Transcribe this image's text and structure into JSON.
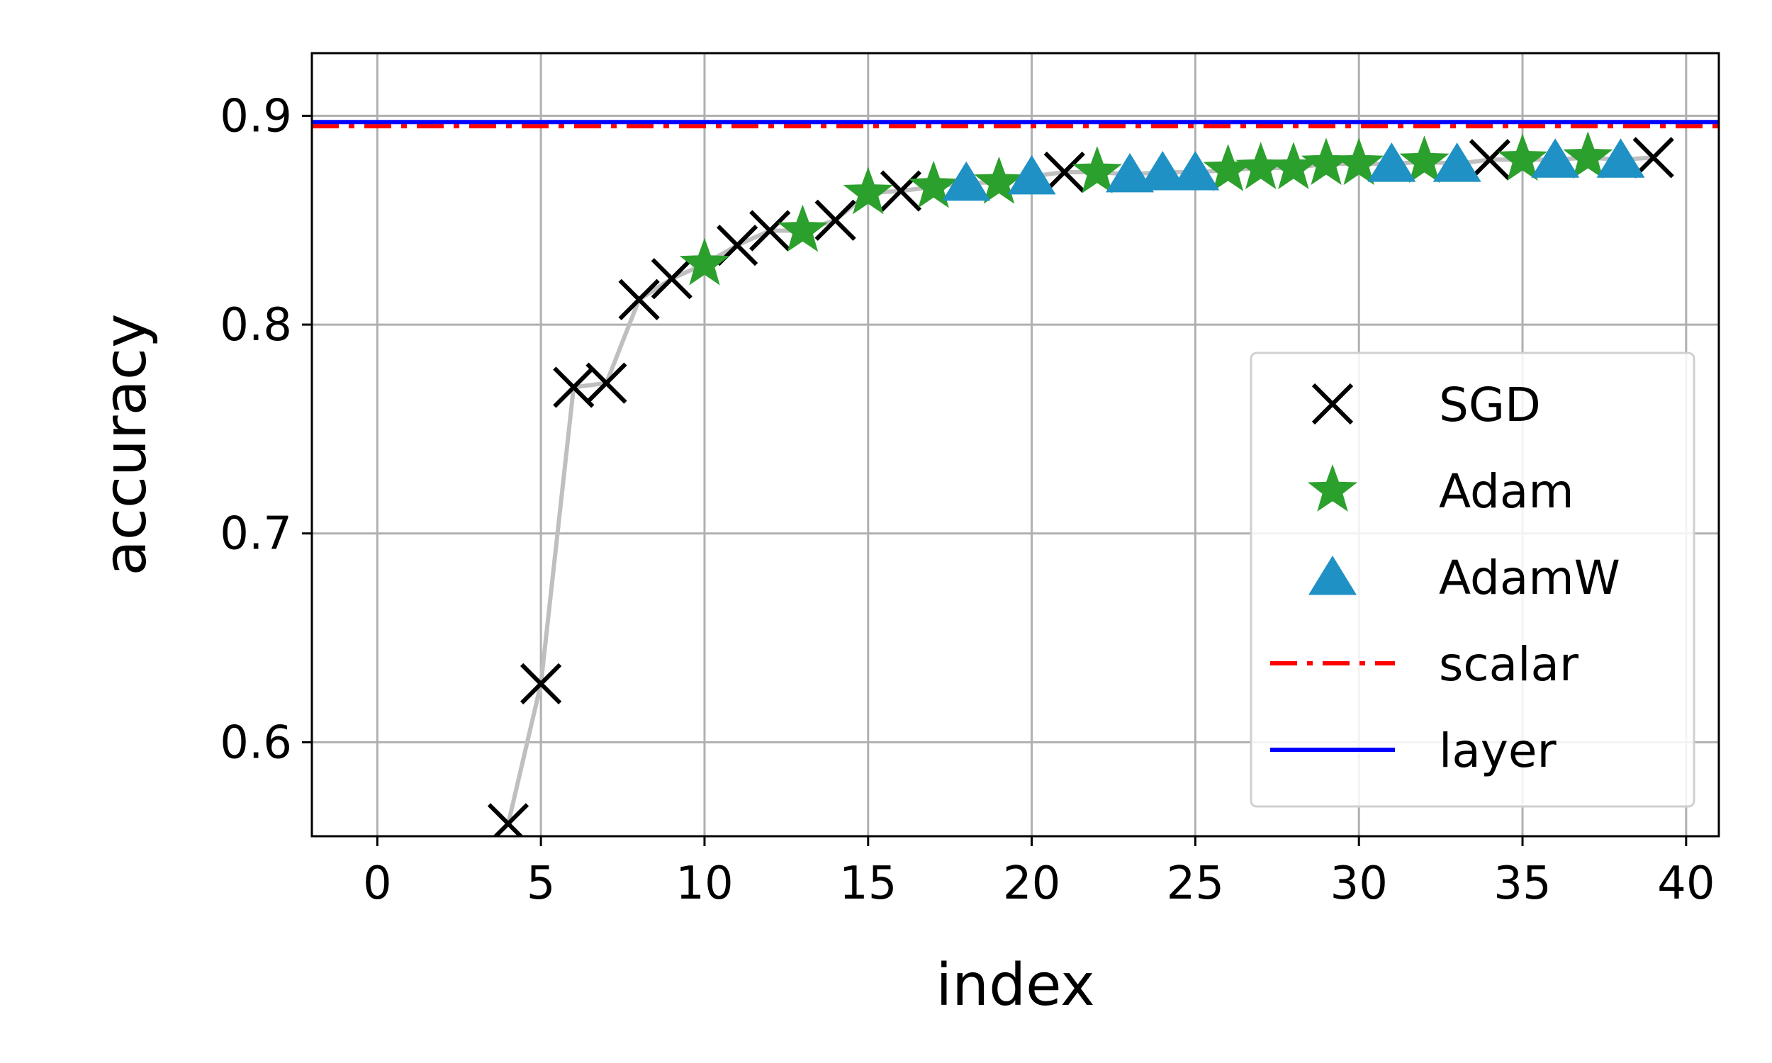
{
  "chart_data": {
    "type": "scatter",
    "xlabel": "index",
    "ylabel": "accuracy",
    "xlim": [
      -2,
      41
    ],
    "ylim": [
      0.555,
      0.93
    ],
    "xticks": [
      0,
      5,
      10,
      15,
      20,
      25,
      30,
      35,
      40
    ],
    "xtick_labels": [
      "0",
      "5",
      "10",
      "15",
      "20",
      "25",
      "30",
      "35",
      "40"
    ],
    "yticks": [
      0.6,
      0.7,
      0.8,
      0.9
    ],
    "ytick_labels": [
      "0.6",
      "0.7",
      "0.8",
      "0.9"
    ],
    "grid": true,
    "legend_position": "center-right",
    "connecting_line": {
      "color": "#bfbfbf",
      "x": [
        4,
        5,
        6,
        7,
        8,
        9,
        10,
        11,
        12,
        13,
        14,
        15,
        16,
        17,
        18,
        19,
        20,
        21,
        22,
        23,
        24,
        25,
        26,
        27,
        28,
        29,
        30,
        31,
        32,
        33,
        34,
        35,
        36,
        37,
        38,
        39
      ],
      "y": [
        0.561,
        0.628,
        0.77,
        0.772,
        0.812,
        0.822,
        0.829,
        0.838,
        0.845,
        0.845,
        0.85,
        0.863,
        0.864,
        0.866,
        0.868,
        0.868,
        0.871,
        0.873,
        0.873,
        0.872,
        0.873,
        0.873,
        0.874,
        0.875,
        0.875,
        0.877,
        0.877,
        0.877,
        0.878,
        0.877,
        0.879,
        0.879,
        0.879,
        0.88,
        0.879,
        0.88
      ]
    },
    "series": [
      {
        "name": "SGD",
        "marker": "x",
        "color": "#000000",
        "points": [
          [
            4,
            0.561
          ],
          [
            5,
            0.628
          ],
          [
            6,
            0.77
          ],
          [
            7,
            0.772
          ],
          [
            8,
            0.812
          ],
          [
            9,
            0.822
          ],
          [
            11,
            0.838
          ],
          [
            12,
            0.845
          ],
          [
            14,
            0.85
          ],
          [
            16,
            0.864
          ],
          [
            21,
            0.873
          ],
          [
            34,
            0.879
          ],
          [
            39,
            0.88
          ]
        ]
      },
      {
        "name": "Adam",
        "marker": "star",
        "color": "#2ca02c",
        "points": [
          [
            10,
            0.829
          ],
          [
            13,
            0.845
          ],
          [
            15,
            0.863
          ],
          [
            17,
            0.866
          ],
          [
            19,
            0.868
          ],
          [
            22,
            0.873
          ],
          [
            26,
            0.874
          ],
          [
            27,
            0.875
          ],
          [
            28,
            0.875
          ],
          [
            29,
            0.877
          ],
          [
            30,
            0.877
          ],
          [
            32,
            0.878
          ],
          [
            35,
            0.879
          ],
          [
            37,
            0.88
          ]
        ]
      },
      {
        "name": "AdamW",
        "marker": "triangle",
        "color": "#1f91c4",
        "points": [
          [
            18,
            0.868
          ],
          [
            20,
            0.871
          ],
          [
            23,
            0.872
          ],
          [
            24,
            0.873
          ],
          [
            25,
            0.873
          ],
          [
            31,
            0.877
          ],
          [
            33,
            0.877
          ],
          [
            36,
            0.879
          ],
          [
            38,
            0.879
          ]
        ]
      }
    ],
    "hlines": [
      {
        "name": "scalar",
        "y": 0.895,
        "color": "#ff0000",
        "style": "dashdot"
      },
      {
        "name": "layer",
        "y": 0.897,
        "color": "#0000ff",
        "style": "solid"
      }
    ]
  }
}
